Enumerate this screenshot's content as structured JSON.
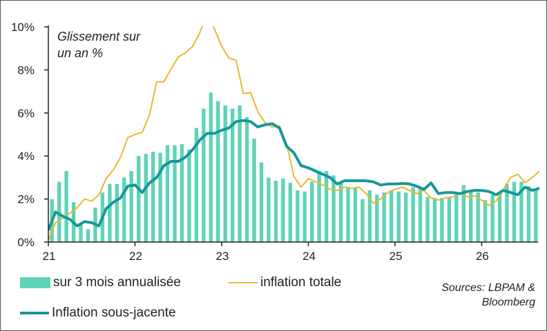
{
  "chart_data": {
    "type": "bar+line",
    "annotation": [
      "Glissement sur",
      "un an %"
    ],
    "y_axis": {
      "min": 0,
      "max": 10,
      "ticks": [
        "0%",
        "2%",
        "4%",
        "6%",
        "8%",
        "10%"
      ],
      "unit": "%"
    },
    "x_axis": {
      "min": 21,
      "max": 26.65,
      "ticks": [
        "21",
        "22",
        "23",
        "24",
        "25",
        "26"
      ]
    },
    "grid": false,
    "legend_placement": "bottom",
    "colors": {
      "bars": "#5fd3b8",
      "total": "#e8b830",
      "core": "#16979a"
    },
    "series": [
      {
        "name": "sur 3 mois annualisée",
        "kind": "bar",
        "start": 21.0,
        "step_months": 1,
        "values": [
          2.0,
          2.8,
          3.3,
          1.85,
          0.8,
          0.6,
          1.6,
          2.3,
          2.7,
          2.7,
          3.0,
          3.3,
          4.0,
          4.1,
          4.2,
          4.15,
          4.5,
          4.5,
          4.55,
          4.3,
          5.3,
          6.2,
          6.95,
          6.55,
          6.35,
          6.2,
          6.35,
          5.8,
          4.8,
          3.7,
          3.0,
          2.85,
          2.95,
          2.75,
          2.4,
          2.35,
          2.8,
          3.3,
          3.3,
          3.1,
          2.8,
          2.55,
          2.5,
          2.0,
          2.4,
          2.2,
          2.3,
          2.4,
          2.35,
          2.3,
          2.55,
          2.5,
          2.1,
          2.05,
          2.05,
          2.1,
          2.3,
          2.65,
          2.35,
          2.3,
          1.95,
          2.2,
          2.3,
          2.7,
          2.8,
          2.8,
          2.6,
          2.5
        ]
      },
      {
        "name": "inflation totale",
        "kind": "line",
        "start": 21.0,
        "step_months": 1,
        "values": [
          0.1,
          0.9,
          1.1,
          1.35,
          1.6,
          2.0,
          1.9,
          2.2,
          2.95,
          3.35,
          3.95,
          4.85,
          5.0,
          5.1,
          5.9,
          7.45,
          7.45,
          8.05,
          8.6,
          8.8,
          9.1,
          9.75,
          10.6,
          9.9,
          9.1,
          8.55,
          8.45,
          6.9,
          6.95,
          6.05,
          5.55,
          5.35,
          5.4,
          4.55,
          3.05,
          2.55,
          2.95,
          2.8,
          2.65,
          2.45,
          2.4,
          2.55,
          2.5,
          2.55,
          2.25,
          1.8,
          2.0,
          2.3,
          2.45,
          2.55,
          2.4,
          2.25,
          2.4,
          2.05,
          1.95,
          2.05,
          2.1,
          2.3,
          2.1,
          2.15,
          1.95,
          1.7,
          1.9,
          2.45,
          3.0,
          3.15,
          2.75,
          3.0,
          3.3
        ]
      },
      {
        "name": "Inflation sous-jacente",
        "kind": "line",
        "start": 21.0,
        "step_months": 1,
        "values": [
          0.55,
          1.4,
          1.2,
          1.05,
          0.75,
          0.95,
          0.9,
          0.75,
          1.55,
          1.85,
          2.05,
          2.6,
          2.65,
          2.3,
          2.75,
          3.0,
          3.55,
          3.75,
          3.75,
          3.95,
          4.3,
          4.75,
          5.05,
          5.05,
          5.2,
          5.3,
          5.6,
          5.65,
          5.6,
          5.35,
          5.45,
          5.5,
          5.3,
          4.45,
          4.15,
          3.55,
          3.45,
          3.3,
          3.15,
          3.0,
          2.7,
          2.85,
          2.85,
          2.85,
          2.85,
          2.8,
          2.65,
          2.7,
          2.7,
          2.72,
          2.7,
          2.6,
          2.45,
          2.75,
          2.25,
          2.3,
          2.3,
          2.25,
          2.35,
          2.4,
          2.4,
          2.35,
          2.2,
          2.4,
          2.3,
          2.2,
          2.55,
          2.4,
          2.5,
          2.45
        ]
      }
    ],
    "source": [
      "Sources: LBPAM &",
      "Bloomberg"
    ]
  }
}
